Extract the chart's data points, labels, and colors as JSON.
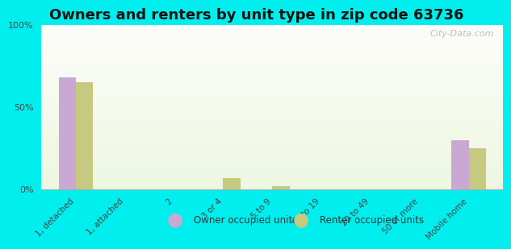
{
  "title": "Owners and renters by unit type in zip code 63736",
  "categories": [
    "1, detached",
    "1, attached",
    "2",
    "3 or 4",
    "5 to 9",
    "10 to 19",
    "20 to 49",
    "50 or more",
    "Mobile home"
  ],
  "owner_values": [
    68,
    0,
    0,
    0,
    0,
    0,
    0,
    0,
    30
  ],
  "renter_values": [
    65,
    0,
    0,
    7,
    2,
    0,
    0,
    0,
    25
  ],
  "owner_color": "#c9a8d4",
  "renter_color": "#c5ca80",
  "background_outer": "#00eeee",
  "ylim": [
    0,
    100
  ],
  "yticks": [
    0,
    50,
    100
  ],
  "ytick_labels": [
    "0%",
    "50%",
    "100%"
  ],
  "bar_width": 0.35,
  "legend_owner": "Owner occupied units",
  "legend_renter": "Renter occupied units",
  "title_fontsize": 13,
  "watermark": "City-Data.com"
}
